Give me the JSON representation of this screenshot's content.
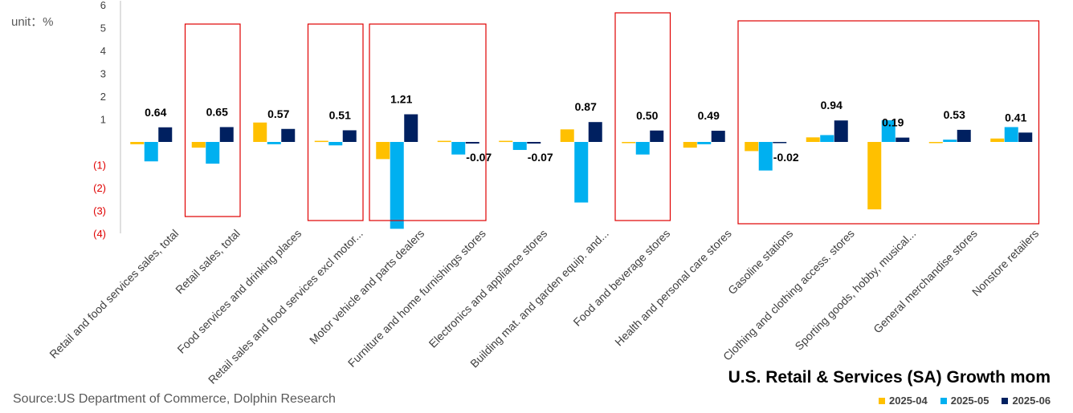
{
  "unit_label": "unit：%",
  "title": "U.S. Retail & Services (SA) Growth mom",
  "source": "Source:US Department of Commerce, Dolphin Research",
  "colors": {
    "s1": "#FFC000",
    "s2": "#00B0F0",
    "s3": "#002060",
    "highlight": "#E00000"
  },
  "chart_data": {
    "type": "bar",
    "ylim": [
      -4,
      6
    ],
    "y_ticks": [
      "6",
      "5",
      "4",
      "3",
      "2",
      "1",
      "(1)",
      "(2)",
      "(3)",
      "(4)"
    ],
    "categories": [
      "Retail and food services sales, total",
      "Retail sales, total",
      "Food services and drinking places",
      "Retail sales and food services excl motor...",
      "Motor vehicle and parts dealers",
      "Furniture and home furnishings stores",
      "Electronics and appliance stores",
      "Building mat. and garden equip. and...",
      "Food and beverage stores",
      "Health and personal care stores",
      "Gasoline stations",
      "Clothing and clothing access. stores",
      "Sporting goods, hobby, musical...",
      "General merchandise stores",
      "Nonstore retailers"
    ],
    "series": [
      {
        "name": "2025-04",
        "values": [
          -0.1,
          -0.25,
          0.85,
          0.05,
          -0.75,
          0.05,
          0.05,
          0.55,
          0.0,
          -0.25,
          -0.4,
          0.2,
          -2.95,
          0.0,
          0.15
        ]
      },
      {
        "name": "2025-05",
        "values": [
          -0.85,
          -0.95,
          -0.1,
          -0.15,
          -3.8,
          -0.55,
          -0.35,
          -2.65,
          -0.55,
          -0.1,
          -1.25,
          0.3,
          0.95,
          0.1,
          0.65
        ]
      },
      {
        "name": "2025-06",
        "values": [
          0.64,
          0.65,
          0.57,
          0.51,
          1.21,
          -0.07,
          -0.07,
          0.87,
          0.5,
          0.49,
          -0.02,
          0.94,
          0.19,
          0.53,
          0.41
        ]
      }
    ],
    "data_labels": [
      "0.64",
      "0.65",
      "0.57",
      "0.51",
      "1.21",
      "-0.07",
      "-0.07",
      "0.87",
      "0.50",
      "0.49",
      "-0.02",
      "0.94",
      "0.19",
      "0.53",
      "0.41"
    ],
    "highlight_boxes": [
      {
        "from_category": 1,
        "to_category": 1
      },
      {
        "from_category": 3,
        "to_category": 3
      },
      {
        "from_category": 4,
        "to_category": 5
      },
      {
        "from_category": 8,
        "to_category": 8
      },
      {
        "from_category": 10,
        "to_category": 14
      }
    ]
  }
}
